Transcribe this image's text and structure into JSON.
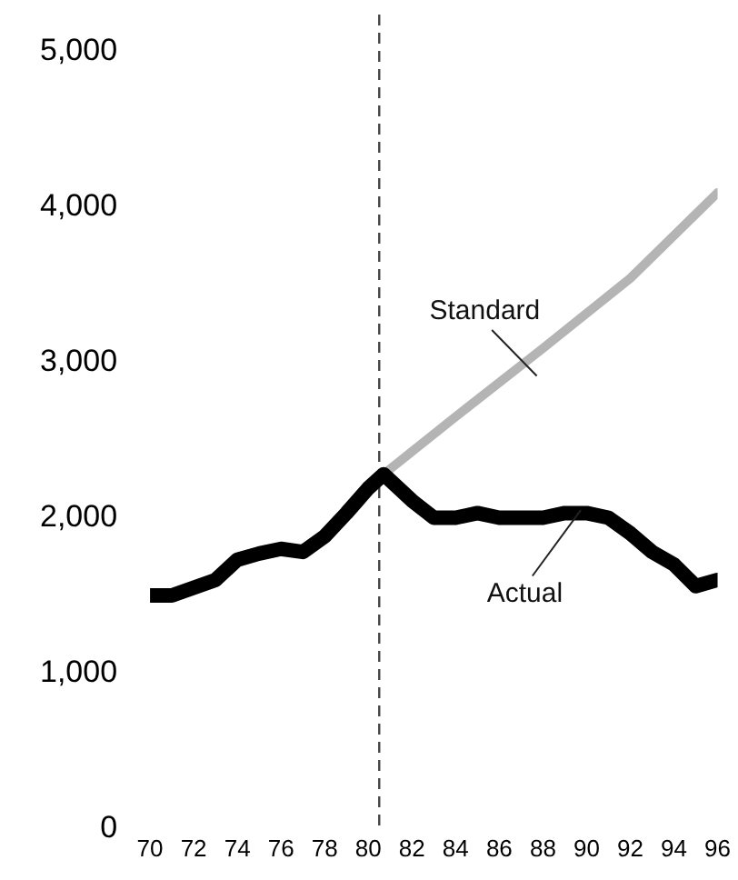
{
  "chart_data": {
    "type": "line",
    "xlim": [
      70,
      96
    ],
    "xticks": [
      70,
      72,
      74,
      76,
      78,
      80,
      82,
      84,
      86,
      88,
      90,
      92,
      94,
      96
    ],
    "ylim": [
      0,
      5000
    ],
    "yticks": [
      {
        "value": 0,
        "label": "0"
      },
      {
        "value": 1000,
        "label": "1,000"
      },
      {
        "value": 2000,
        "label": "2,000"
      },
      {
        "value": 3000,
        "label": "3,000"
      },
      {
        "value": 4000,
        "label": "4,000"
      },
      {
        "value": 5000,
        "label": "5,000"
      }
    ],
    "grid": false,
    "legend": false,
    "marker": "none",
    "series": [
      {
        "color": "#000000",
        "x": [
          70,
          71,
          72,
          73,
          74,
          75,
          76,
          77,
          78,
          79,
          80,
          80.7,
          82,
          83,
          84,
          85,
          86,
          87,
          88,
          89,
          90,
          91,
          92,
          93,
          94,
          95,
          96
        ],
        "values": [
          1500,
          1500,
          1550,
          1600,
          1730,
          1770,
          1800,
          1780,
          1880,
          2030,
          2190,
          2280,
          2110,
          2000,
          2000,
          2030,
          2000,
          2000,
          2000,
          2030,
          2030,
          2000,
          1900,
          1780,
          1700,
          1560,
          1600
        ]
      },
      {
        "color": "#b4b4b4",
        "x": [
          80.7,
          84,
          88,
          92,
          96
        ],
        "values": [
          2280,
          2650,
          3090,
          3540,
          4090
        ]
      }
    ],
    "ref_lines": [
      {
        "axis": "x",
        "value": 80.5,
        "color": "#444444",
        "line_style": "dashed"
      }
    ],
    "annotations": [
      {
        "text": "Standard",
        "x": 87.5,
        "y": 2950
      },
      {
        "text": "Actual",
        "x": 89.5,
        "y": 2000
      }
    ]
  }
}
